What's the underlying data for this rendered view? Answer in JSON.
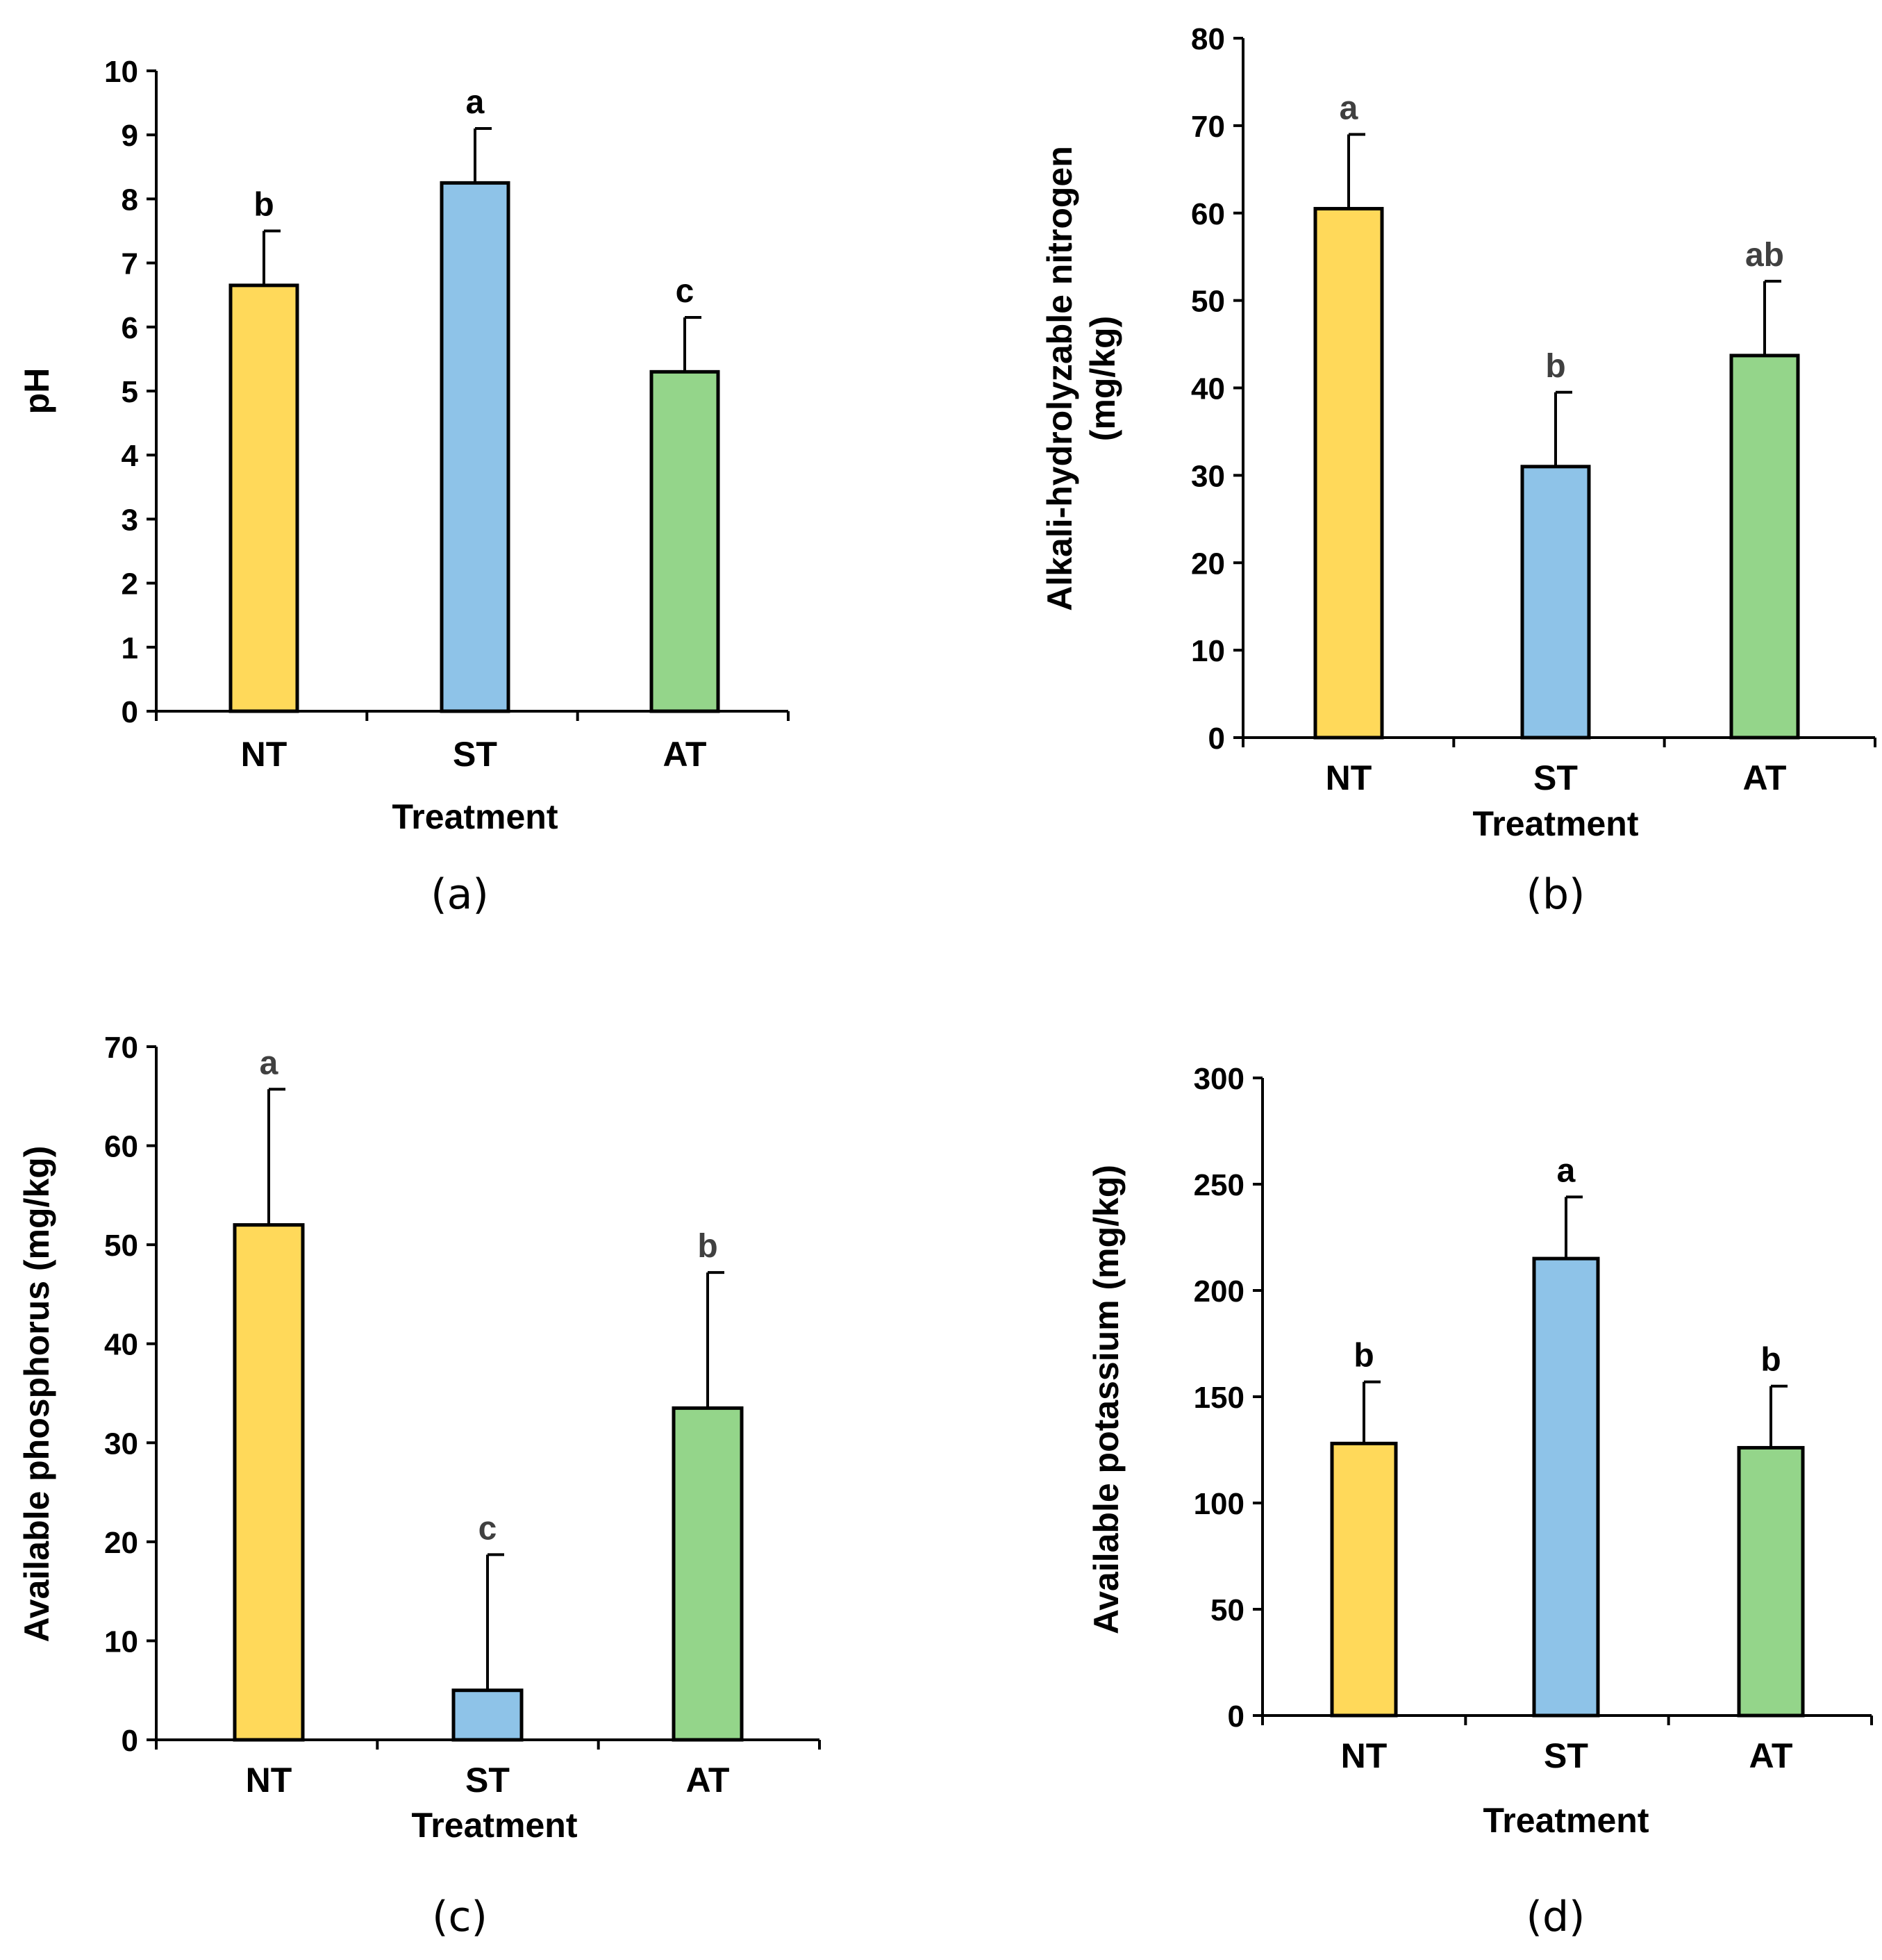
{
  "colors": {
    "NT": "#FFD95A",
    "ST": "#8EC3E8",
    "AT": "#94D58A",
    "axis": "#000000"
  },
  "chart_data": [
    {
      "panel": "(a)",
      "type": "bar",
      "categories": [
        "NT",
        "ST",
        "AT"
      ],
      "values": [
        6.65,
        8.25,
        5.3
      ],
      "errors": [
        0.85,
        0.85,
        0.85
      ],
      "significance": [
        "b",
        "a",
        "c"
      ],
      "sig_color": "#000000",
      "xlabel": "Treatment",
      "ylabel": "pH",
      "ylim": [
        0,
        10
      ],
      "yticks": [
        "0",
        "1",
        "2",
        "3",
        "4",
        "5",
        "6",
        "7",
        "8",
        "9",
        "10"
      ]
    },
    {
      "panel": "(b)",
      "type": "bar",
      "categories": [
        "NT",
        "ST",
        "AT"
      ],
      "values": [
        60.5,
        31.0,
        43.7
      ],
      "errors": [
        8.5,
        8.5,
        8.5
      ],
      "significance": [
        "a",
        "b",
        "ab"
      ],
      "sig_color": "#404040",
      "xlabel": "Treatment",
      "ylabel": [
        "Alkali-hydrolyzable nitrogen",
        "(mg/kg)"
      ],
      "ylim": [
        0,
        80
      ],
      "yticks": [
        "0",
        "10",
        "20",
        "30",
        "40",
        "50",
        "60",
        "70",
        "80"
      ]
    },
    {
      "panel": "(c)",
      "type": "bar",
      "categories": [
        "NT",
        "ST",
        "AT"
      ],
      "values": [
        52.0,
        5.0,
        33.5
      ],
      "errors": [
        13.7,
        13.7,
        13.7
      ],
      "significance": [
        "a",
        "c",
        "b"
      ],
      "sig_color": "#404040",
      "xlabel": "Treatment",
      "ylabel": "Available phosphorus (mg/kg)",
      "ylim": [
        0,
        70
      ],
      "yticks": [
        "0",
        "10",
        "20",
        "30",
        "40",
        "50",
        "60",
        "70"
      ]
    },
    {
      "panel": "(d)",
      "type": "bar",
      "categories": [
        "NT",
        "ST",
        "AT"
      ],
      "values": [
        128,
        215,
        126
      ],
      "errors": [
        29,
        29,
        29
      ],
      "significance": [
        "b",
        "a",
        "b"
      ],
      "sig_color": "#000000",
      "xlabel": "Treatment",
      "ylabel": "Available potassium (mg/kg)",
      "ylim": [
        0,
        300
      ],
      "yticks": [
        "0",
        "50",
        "100",
        "150",
        "200",
        "250",
        "300"
      ]
    }
  ]
}
